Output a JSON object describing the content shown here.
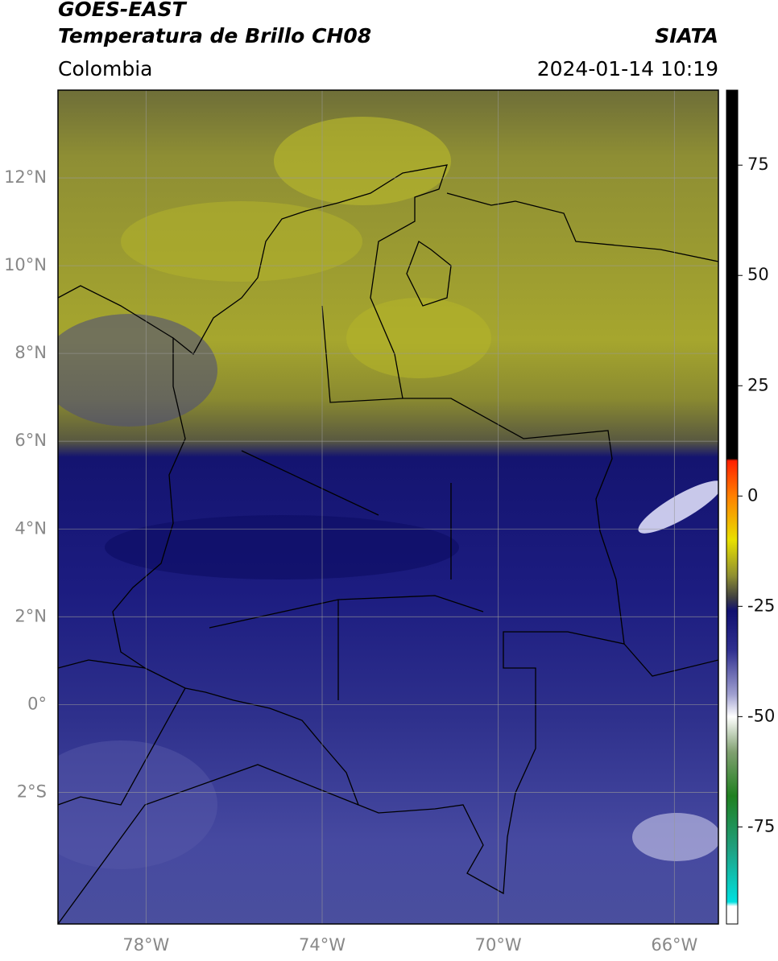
{
  "chart_data": {
    "type": "map",
    "title": "GOES-EAST",
    "subtitle": "Temperatura de Brillo CH08",
    "source": "SIATA",
    "region": "Colombia",
    "datetime": "2024-01-14 10:19",
    "xlim": [
      -80,
      -65
    ],
    "ylim": [
      -5,
      14
    ],
    "xticks": [
      {
        "value": -78,
        "label": "78°W"
      },
      {
        "value": -74,
        "label": "74°W"
      },
      {
        "value": -70,
        "label": "70°W"
      },
      {
        "value": -66,
        "label": "66°W"
      }
    ],
    "yticks": [
      {
        "value": 12,
        "label": "12°N"
      },
      {
        "value": 10,
        "label": "10°N"
      },
      {
        "value": 8,
        "label": "8°N"
      },
      {
        "value": 6,
        "label": "6°N"
      },
      {
        "value": 4,
        "label": "4°N"
      },
      {
        "value": 2,
        "label": "2°N"
      },
      {
        "value": 0,
        "label": "0°"
      },
      {
        "value": -2,
        "label": "2°S"
      }
    ],
    "grid": true,
    "colorbar": {
      "lim": [
        -97,
        92
      ],
      "ticks": [
        75,
        50,
        25,
        0,
        -25,
        -50,
        -75
      ],
      "colormap": [
        {
          "value": 92,
          "color": "#000000"
        },
        {
          "value": 8.5,
          "color": "#000000"
        },
        {
          "value": 8,
          "color": "#ff2000"
        },
        {
          "value": 0,
          "color": "#ff8000"
        },
        {
          "value": -10,
          "color": "#e8e000"
        },
        {
          "value": -18,
          "color": "#909030"
        },
        {
          "value": -23,
          "color": "#404040"
        },
        {
          "value": -26,
          "color": "#101070"
        },
        {
          "value": -35,
          "color": "#303090"
        },
        {
          "value": -45,
          "color": "#a0a0d0"
        },
        {
          "value": -50,
          "color": "#ffffff"
        },
        {
          "value": -58,
          "color": "#80a070"
        },
        {
          "value": -68,
          "color": "#208020"
        },
        {
          "value": -80,
          "color": "#20a080"
        },
        {
          "value": -92,
          "color": "#00e0e0"
        },
        {
          "value": -93,
          "color": "#ffffff"
        },
        {
          "value": -97,
          "color": "#ffffff"
        }
      ]
    }
  }
}
